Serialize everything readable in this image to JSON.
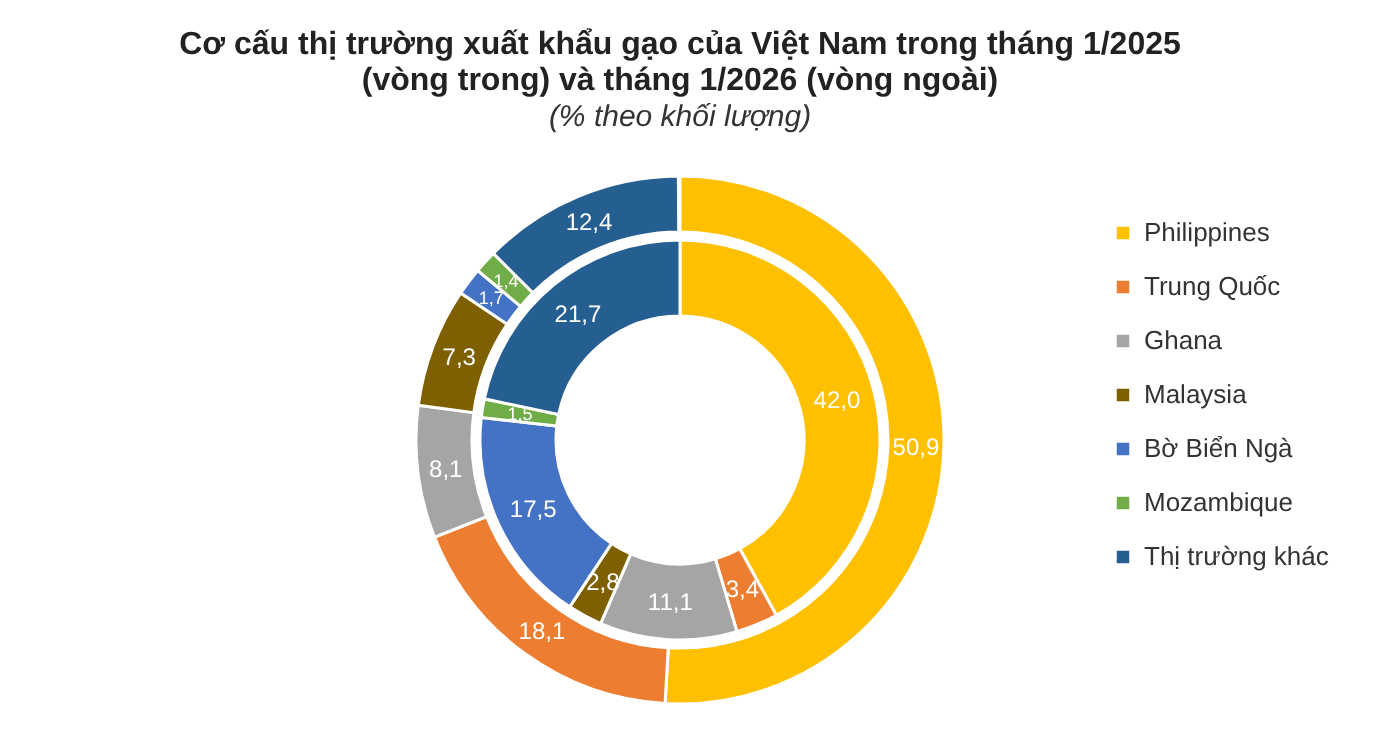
{
  "chart_data": {
    "type": "donut",
    "title": [
      "Cơ cấu thị trường xuất khẩu gạo của Việt Nam trong tháng 1/2025",
      "(vòng trong) và tháng 1/2026 (vòng ngoài)"
    ],
    "subtitle": "(% theo khối lượng)",
    "legend": "right",
    "categories": [
      "Philippines",
      "Trung Quốc",
      "Ghana",
      "Malaysia",
      "Bờ Biển Ngà",
      "Mozambique",
      "Thị trường khác"
    ],
    "colors": [
      "#ffc000",
      "#ed7d31",
      "#a5a5a5",
      "#7f6000",
      "#4472c4",
      "#70ad47",
      "#255e91"
    ],
    "series": [
      {
        "values": [
          42.0,
          3.4,
          11.1,
          2.8,
          17.5,
          1.5,
          21.7
        ],
        "value_labels": [
          "42,0",
          "3,4",
          "11,1",
          "2,8",
          "17,5",
          "1,5",
          "21,7"
        ]
      },
      {
        "values": [
          50.9,
          18.1,
          8.1,
          7.3,
          1.7,
          1.4,
          12.4
        ],
        "value_labels": [
          "50,9",
          "18,1",
          "8,1",
          "7,3",
          "1,7",
          "1,4",
          "12,4"
        ]
      }
    ]
  }
}
